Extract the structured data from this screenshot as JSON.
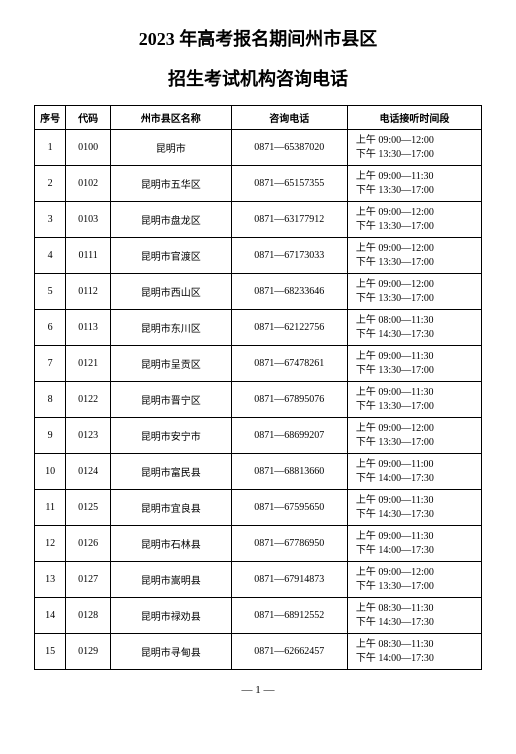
{
  "title_line1": "2023 年高考报名期间州市县区",
  "title_line2": "招生考试机构咨询电话",
  "headers": {
    "idx": "序号",
    "code": "代码",
    "name": "州市县区名称",
    "phone": "咨询电话",
    "time": "电话接听时间段"
  },
  "rows": [
    {
      "idx": "1",
      "code": "0100",
      "name": "昆明市",
      "phone": "0871—65387020",
      "am": "上午 09:00—12:00",
      "pm": "下午 13:30—17:00"
    },
    {
      "idx": "2",
      "code": "0102",
      "name": "昆明市五华区",
      "phone": "0871—65157355",
      "am": "上午 09:00—11:30",
      "pm": "下午 13:30—17:00"
    },
    {
      "idx": "3",
      "code": "0103",
      "name": "昆明市盘龙区",
      "phone": "0871—63177912",
      "am": "上午 09:00—12:00",
      "pm": "下午 13:30—17:00"
    },
    {
      "idx": "4",
      "code": "0111",
      "name": "昆明市官渡区",
      "phone": "0871—67173033",
      "am": "上午 09:00—12:00",
      "pm": "下午 13:30—17:00"
    },
    {
      "idx": "5",
      "code": "0112",
      "name": "昆明市西山区",
      "phone": "0871—68233646",
      "am": "上午 09:00—12:00",
      "pm": "下午 13:30—17:00"
    },
    {
      "idx": "6",
      "code": "0113",
      "name": "昆明市东川区",
      "phone": "0871—62122756",
      "am": "上午 08:00—11:30",
      "pm": "下午 14:30—17:30"
    },
    {
      "idx": "7",
      "code": "0121",
      "name": "昆明市呈贡区",
      "phone": "0871—67478261",
      "am": "上午 09:00—11:30",
      "pm": "下午 13:30—17:00"
    },
    {
      "idx": "8",
      "code": "0122",
      "name": "昆明市晋宁区",
      "phone": "0871—67895076",
      "am": "上午 09:00—11:30",
      "pm": "下午 13:30—17:00"
    },
    {
      "idx": "9",
      "code": "0123",
      "name": "昆明市安宁市",
      "phone": "0871—68699207",
      "am": "上午 09:00—12:00",
      "pm": "下午 13:30—17:00"
    },
    {
      "idx": "10",
      "code": "0124",
      "name": "昆明市富民县",
      "phone": "0871—68813660",
      "am": "上午 09:00—11:00",
      "pm": "下午 14:00—17:30"
    },
    {
      "idx": "11",
      "code": "0125",
      "name": "昆明市宜良县",
      "phone": "0871—67595650",
      "am": "上午 09:00—11:30",
      "pm": "下午 14:30—17:30"
    },
    {
      "idx": "12",
      "code": "0126",
      "name": "昆明市石林县",
      "phone": "0871—67786950",
      "am": "上午 09:00—11:30",
      "pm": "下午 14:00—17:30"
    },
    {
      "idx": "13",
      "code": "0127",
      "name": "昆明市嵩明县",
      "phone": "0871—67914873",
      "am": "上午 09:00—12:00",
      "pm": "下午 13:30—17:00"
    },
    {
      "idx": "14",
      "code": "0128",
      "name": "昆明市禄劝县",
      "phone": "0871—68912552",
      "am": "上午 08:30—11:30",
      "pm": "下午 14:30—17:30"
    },
    {
      "idx": "15",
      "code": "0129",
      "name": "昆明市寻甸县",
      "phone": "0871—62662457",
      "am": "上午 08:30—11:30",
      "pm": "下午 14:00—17:30"
    }
  ],
  "page_number": "— 1 —"
}
